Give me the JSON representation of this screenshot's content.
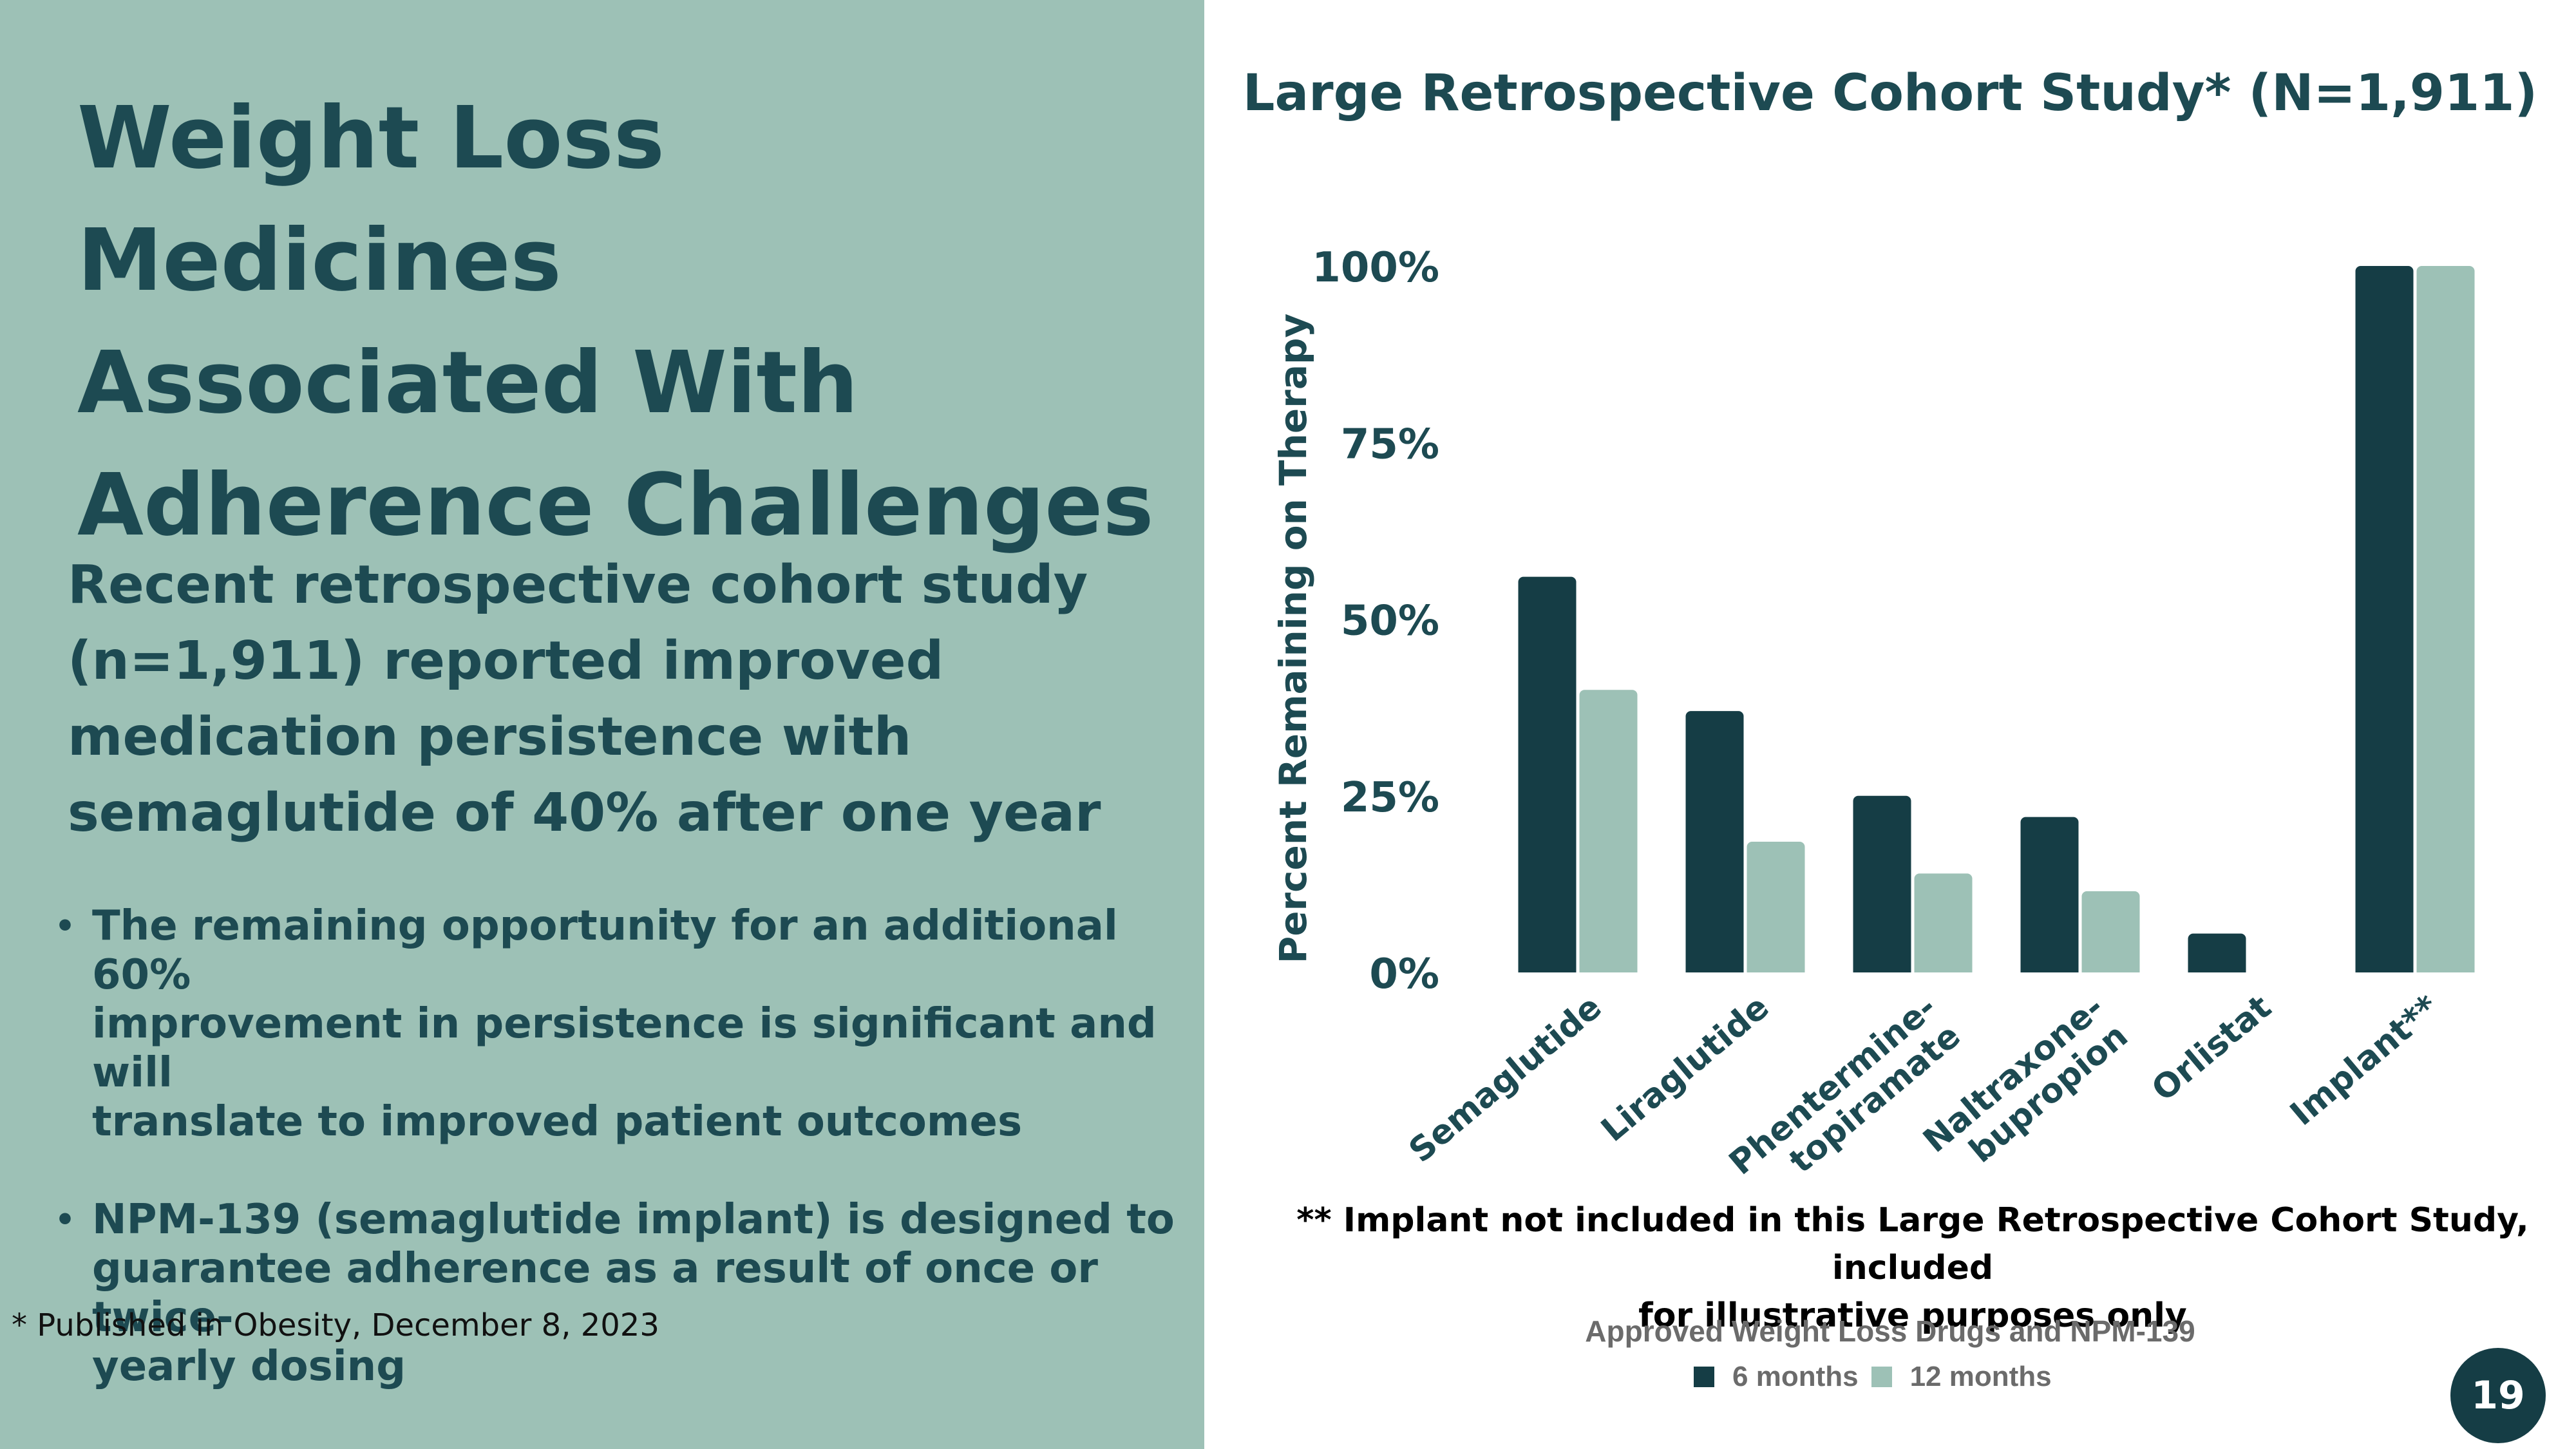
{
  "slide": {
    "title_lines": [
      "Weight Loss Medicines",
      "Associated With",
      "Adherence Challenges"
    ],
    "lead_lines": [
      "Recent retrospective cohort study",
      "(n=1,911) reported improved",
      "medication persistence with",
      "semaglutide of 40% after one year"
    ],
    "bullets": [
      {
        "lines": [
          "The remaining opportunity for an additional 60%",
          "improvement in persistence is significant and will",
          "translate to improved patient outcomes"
        ]
      },
      {
        "lines": [
          "NPM-139 (semaglutide implant) is designed to",
          "guarantee adherence as a result of once or twice-",
          "yearly dosing"
        ]
      }
    ],
    "footnote": "* Published in Obesity, December 8, 2023",
    "page_number": "19",
    "bullet_glyph": "•"
  },
  "colors": {
    "panel": "#9dc1b6",
    "text": "#1d4a52",
    "series_6m": "#153d45",
    "series_12m": "#9dc1b6"
  },
  "chart_data": {
    "type": "bar",
    "title": "Large Retrospective Cohort Study* (N=1,911)",
    "ylabel": "Percent Remaining on Therapy",
    "xlabel": "Approved Weight Loss Drugs and NPM-139",
    "ylim": [
      0,
      100
    ],
    "yticks": [
      "0%",
      "25%",
      "50%",
      "75%",
      "100%"
    ],
    "ytick_values": [
      0,
      25,
      50,
      75,
      100
    ],
    "categories": [
      [
        "Semaglutide"
      ],
      [
        "Liraglutide"
      ],
      [
        "Phentermine-",
        "topiramate"
      ],
      [
        "Naltraxone-",
        "bupropion"
      ],
      [
        "Orlistat"
      ],
      [
        "Implant**"
      ]
    ],
    "series": [
      {
        "name": "6 months",
        "values": [
          56,
          37,
          25,
          22,
          5.5,
          100
        ]
      },
      {
        "name": "12 months",
        "values": [
          40,
          18.5,
          14,
          11.5,
          0,
          100
        ]
      }
    ],
    "grid": false,
    "legend": "bottom",
    "note_lines": [
      "** Implant not included in this Large Retrospective Cohort Study, included",
      "for illustrative purposes only"
    ]
  }
}
